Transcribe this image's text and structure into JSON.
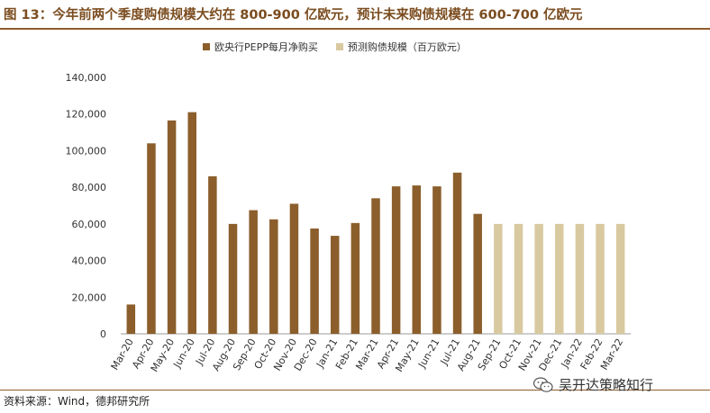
{
  "figure": {
    "title": "图 13：今年前两个季度购债规模大约在 800-900 亿欧元，预计未来购债规模在 600-700 亿欧元"
  },
  "legend": {
    "items": [
      {
        "label": "欧央行PEPP每月净购买",
        "color": "#8b5e2b"
      },
      {
        "label": "预测购债规模（百万欧元）",
        "color": "#d9c9a0"
      }
    ]
  },
  "source": "资料来源：Wind，德邦研究所",
  "watermark": {
    "text": "吴开达策略知行",
    "icon": "wechat-logo-icon"
  },
  "chart_data": {
    "type": "bar",
    "categories": [
      "Mar-20",
      "Apr-20",
      "May-20",
      "Jun-20",
      "Jul-20",
      "Aug-20",
      "Sep-20",
      "Oct-20",
      "Nov-20",
      "Dec-20",
      "Jan-21",
      "Feb-21",
      "Mar-21",
      "Apr-21",
      "May-21",
      "Jun-21",
      "Jul-21",
      "Aug-21",
      "Sep-21",
      "Oct-21",
      "Nov-21",
      "Dec-21",
      "Jan-22",
      "Feb-22",
      "Mar-22"
    ],
    "series": [
      {
        "name": "欧央行PEPP每月净购买",
        "color": "#8b5e2b",
        "values": [
          16000,
          104000,
          116500,
          121000,
          86000,
          60000,
          67500,
          62500,
          71000,
          57500,
          53500,
          60500,
          74000,
          80500,
          81000,
          80500,
          88000,
          65500,
          null,
          null,
          null,
          null,
          null,
          null,
          null
        ]
      },
      {
        "name": "预测购债规模（百万欧元）",
        "color": "#d9c9a0",
        "values": [
          null,
          null,
          null,
          null,
          null,
          null,
          null,
          null,
          null,
          null,
          null,
          null,
          null,
          null,
          null,
          null,
          null,
          null,
          60000,
          60000,
          60000,
          60000,
          60000,
          60000,
          60000
        ]
      }
    ],
    "ylim": [
      0,
      140000
    ],
    "yticks": [
      0,
      20000,
      40000,
      60000,
      80000,
      100000,
      120000,
      140000
    ],
    "ytick_labels": [
      "0",
      "20,000",
      "40,000",
      "60,000",
      "80,000",
      "100,000",
      "120,000",
      "140,000"
    ],
    "xlabel": "",
    "ylabel": "",
    "grid": false,
    "legend_position": "top"
  }
}
